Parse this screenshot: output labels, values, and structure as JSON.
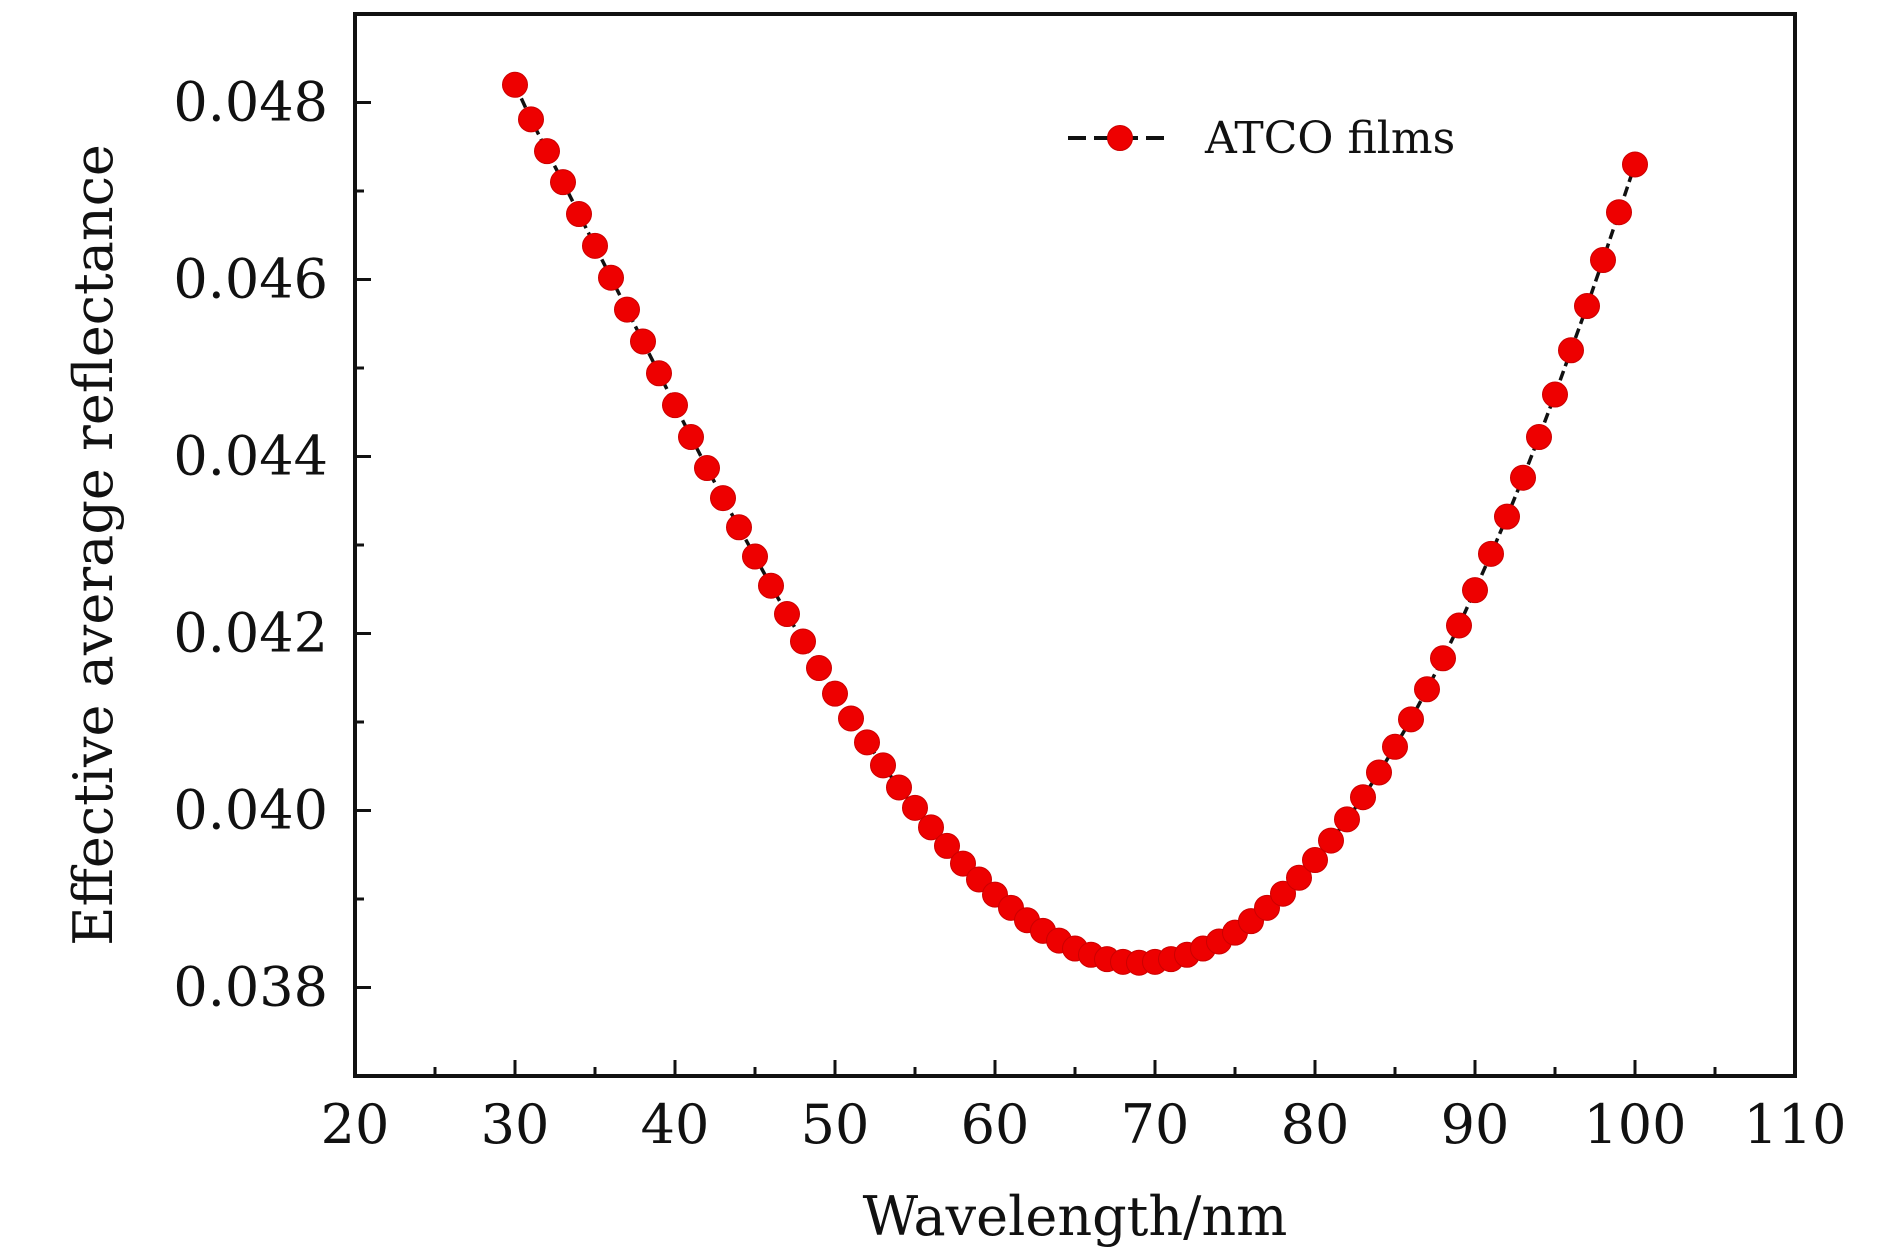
{
  "chart_data": {
    "type": "line",
    "title": "",
    "xlabel": "Wavelength/nm",
    "ylabel": "Effective average reflectance",
    "xlim": [
      20,
      110
    ],
    "ylim": [
      0.037,
      0.049
    ],
    "xticks": [
      20,
      30,
      40,
      50,
      60,
      70,
      80,
      90,
      100,
      110
    ],
    "xtick_labels": [
      "20",
      "30",
      "40",
      "50",
      "60",
      "70",
      "80",
      "90",
      "100",
      "110"
    ],
    "yticks": [
      0.038,
      0.04,
      0.042,
      0.044,
      0.046,
      0.048
    ],
    "ytick_labels": [
      "0.038",
      "0.040",
      "0.042",
      "0.044",
      "0.046",
      "0.048"
    ],
    "grid": false,
    "legend_position": "top-right",
    "series": [
      {
        "name": "ATCO films",
        "marker": "circle",
        "line_style": "dashed",
        "marker_color": "#ee0000",
        "line_color": "#111111",
        "x": [
          30,
          31,
          32,
          33,
          34,
          35,
          36,
          37,
          38,
          39,
          40,
          41,
          42,
          43,
          44,
          45,
          46,
          47,
          48,
          49,
          50,
          51,
          52,
          53,
          54,
          55,
          56,
          57,
          58,
          59,
          60,
          61,
          62,
          63,
          64,
          65,
          66,
          67,
          68,
          69,
          70,
          71,
          72,
          73,
          74,
          75,
          76,
          77,
          78,
          79,
          80,
          81,
          82,
          83,
          84,
          85,
          86,
          87,
          88,
          89,
          90,
          91,
          92,
          93,
          94,
          95,
          96,
          97,
          98,
          99,
          100
        ],
        "y": [
          0.0482,
          0.04781,
          0.04745,
          0.0471,
          0.04674,
          0.04638,
          0.04602,
          0.04566,
          0.0453,
          0.04494,
          0.04458,
          0.04422,
          0.04387,
          0.04353,
          0.0432,
          0.04287,
          0.04254,
          0.04222,
          0.04191,
          0.04161,
          0.04132,
          0.04104,
          0.04077,
          0.04051,
          0.04026,
          0.04003,
          0.03981,
          0.0396,
          0.0394,
          0.03922,
          0.03905,
          0.0389,
          0.03876,
          0.03864,
          0.03853,
          0.03844,
          0.03837,
          0.03832,
          0.03829,
          0.03828,
          0.03829,
          0.03832,
          0.03837,
          0.03844,
          0.03852,
          0.03862,
          0.03875,
          0.0389,
          0.03906,
          0.03924,
          0.03944,
          0.03966,
          0.0399,
          0.04015,
          0.04043,
          0.04072,
          0.04103,
          0.04137,
          0.04172,
          0.04209,
          0.04249,
          0.0429,
          0.04332,
          0.04376,
          0.04422,
          0.0447,
          0.0452,
          0.0457,
          0.04622,
          0.04676,
          0.0473
        ]
      }
    ]
  }
}
